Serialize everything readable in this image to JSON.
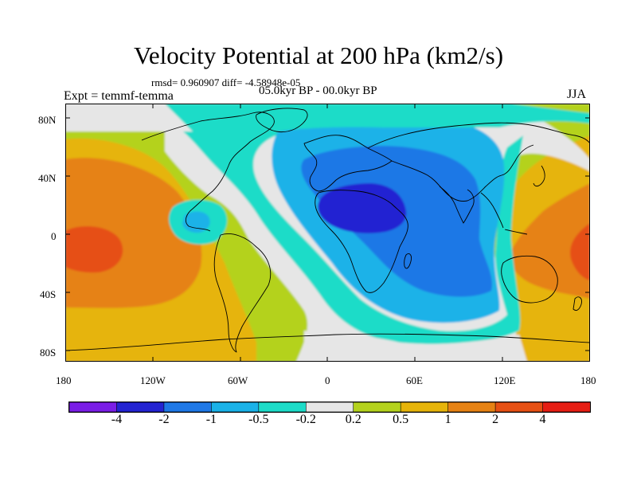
{
  "title": "Velocity Potential at 200 hPa (km2/s)",
  "stats": "rmsd= 0.960907 diff= -4.58948e-05",
  "expt": "Expt = temmf-temma",
  "period": "05.0kyr BP - 00.0kyr BP",
  "season": "JJA",
  "lat_labels": [
    "80N",
    "40N",
    "0",
    "40S",
    "80S"
  ],
  "lon_labels": [
    "180",
    "120W",
    "60W",
    "0",
    "60E",
    "120E",
    "180"
  ],
  "legend": {
    "colors": [
      "#7a1ee6",
      "#2424d2",
      "#1f78e6",
      "#1ab2e8",
      "#1ddcc8",
      "#e6e6e6",
      "#b4d21e",
      "#e6b40a",
      "#e68214",
      "#e65014",
      "#e61e14"
    ],
    "labels": [
      "-4",
      "-2",
      "-1",
      "-0.5",
      "-0.2",
      "0.2",
      "0.5",
      "1",
      "2",
      "4"
    ]
  }
}
